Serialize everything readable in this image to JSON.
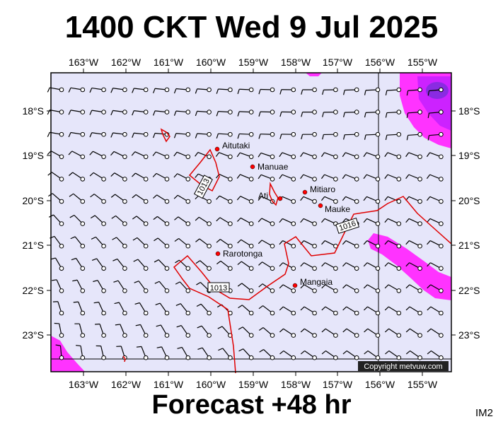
{
  "header": {
    "title": "1400 CKT Wed 9 Jul 2025"
  },
  "footer": {
    "forecast": "Forecast +48 hr",
    "code": "IM2"
  },
  "copyright": "Copyright metvuw.com",
  "axes": {
    "lon_labels": [
      "163°W",
      "162°W",
      "161°W",
      "160°W",
      "159°W",
      "158°W",
      "157°W",
      "156°W",
      "155°W"
    ],
    "lat_labels": [
      "18°S",
      "19°S",
      "20°S",
      "21°S",
      "22°S",
      "23°S"
    ]
  },
  "places": [
    {
      "name": "Aitutaki"
    },
    {
      "name": "Manuae"
    },
    {
      "name": "Mitiaro"
    },
    {
      "name": "Ati"
    },
    {
      "name": "Mauke"
    },
    {
      "name": "Rarotonga"
    },
    {
      "name": "Mangaia"
    }
  ],
  "isobars": [
    {
      "label": "1013"
    },
    {
      "label": "1013"
    },
    {
      "label": "1016"
    }
  ],
  "colors": {
    "ocean": "#e6e6fa",
    "isobar": "#e00000",
    "rain_light": "#ff33ff",
    "rain_heavy": "#9933ff",
    "island": "#ff0000"
  }
}
